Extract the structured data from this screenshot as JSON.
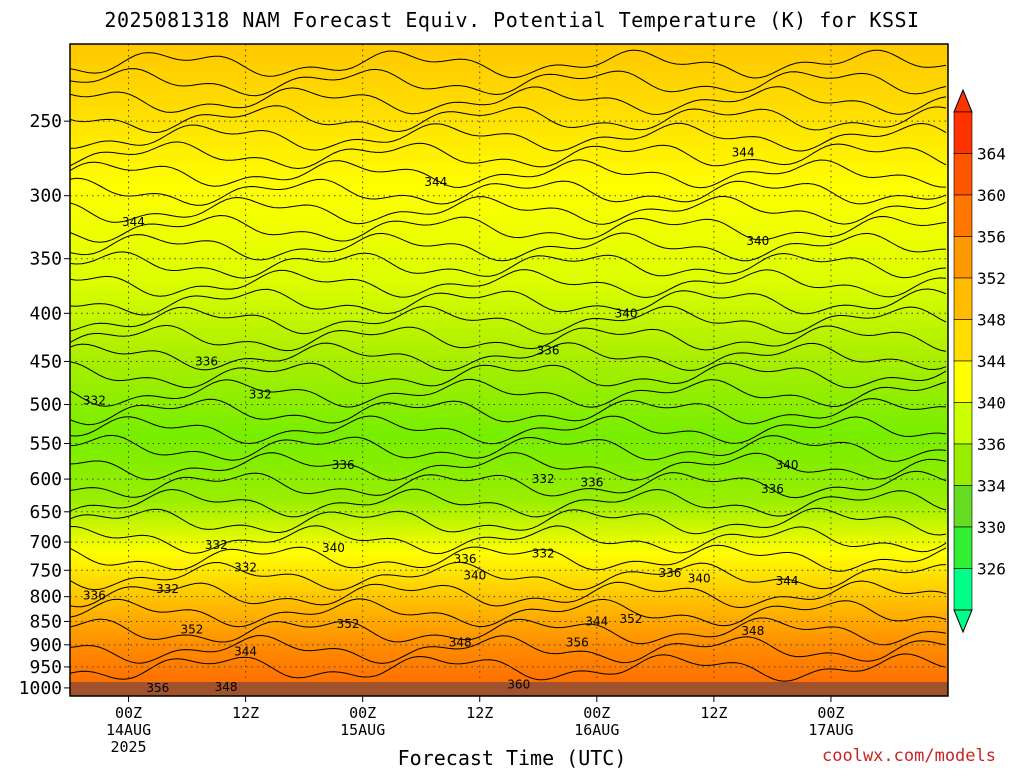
{
  "title": "2025081318 NAM Forecast Equiv. Potential Temperature (K) for KSSI",
  "credit": "coolwx.com/models",
  "chart_data": {
    "type": "heatmap",
    "title": "2025081318 NAM Forecast Equiv. Potential Temperature (K) for KSSI",
    "xlabel": "Forecast Time (UTC)",
    "ylabel": "",
    "y_axis": {
      "scale": "log-pressure",
      "ticks": [
        250,
        300,
        350,
        400,
        450,
        500,
        550,
        600,
        650,
        700,
        750,
        800,
        850,
        900,
        950,
        1000
      ],
      "range": [
        1000,
        200
      ],
      "grid": true
    },
    "x_axis": {
      "range_hours": [
        -6,
        84
      ],
      "ticks": [
        {
          "hour": 0,
          "lines": [
            "00Z",
            "14AUG",
            "2025"
          ]
        },
        {
          "hour": 12,
          "lines": [
            "12Z"
          ]
        },
        {
          "hour": 24,
          "lines": [
            "00Z",
            "15AUG"
          ]
        },
        {
          "hour": 36,
          "lines": [
            "12Z"
          ]
        },
        {
          "hour": 48,
          "lines": [
            "00Z",
            "16AUG"
          ]
        },
        {
          "hour": 60,
          "lines": [
            "12Z"
          ]
        },
        {
          "hour": 72,
          "lines": [
            "00Z",
            "17AUG"
          ]
        }
      ],
      "grid": true
    },
    "units": "K",
    "colorbar": {
      "labels": [
        326,
        330,
        334,
        336,
        340,
        344,
        348,
        352,
        356,
        360,
        364
      ],
      "colors": [
        "#00ff88",
        "#33ee33",
        "#66dd22",
        "#99ee00",
        "#ccff00",
        "#ffff00",
        "#ffdd00",
        "#ffbb00",
        "#ff9900",
        "#ff7700",
        "#ff5500",
        "#ff3300"
      ]
    },
    "contour_labels": [
      {
        "text": "344",
        "h": 0.5,
        "p": 320
      },
      {
        "text": "344",
        "h": 31.5,
        "p": 290
      },
      {
        "text": "344",
        "h": 63,
        "p": 270
      },
      {
        "text": "340",
        "h": 64.5,
        "p": 335
      },
      {
        "text": "340",
        "h": 51,
        "p": 400
      },
      {
        "text": "336",
        "h": 8,
        "p": 450
      },
      {
        "text": "336",
        "h": 43,
        "p": 438
      },
      {
        "text": "332",
        "h": -3.5,
        "p": 495
      },
      {
        "text": "332",
        "h": 13.5,
        "p": 488
      },
      {
        "text": "336",
        "h": 22,
        "p": 580
      },
      {
        "text": "332",
        "h": 42.5,
        "p": 600
      },
      {
        "text": "336",
        "h": 47.5,
        "p": 605
      },
      {
        "text": "340",
        "h": 67.5,
        "p": 580
      },
      {
        "text": "336",
        "h": 66,
        "p": 615
      },
      {
        "text": "332",
        "h": 9,
        "p": 705
      },
      {
        "text": "332",
        "h": 12,
        "p": 745
      },
      {
        "text": "340",
        "h": 21,
        "p": 710
      },
      {
        "text": "336",
        "h": 34.5,
        "p": 730
      },
      {
        "text": "340",
        "h": 35.5,
        "p": 760
      },
      {
        "text": "332",
        "h": 42.5,
        "p": 720
      },
      {
        "text": "336",
        "h": 55.5,
        "p": 755
      },
      {
        "text": "340",
        "h": 58.5,
        "p": 765
      },
      {
        "text": "332",
        "h": 4,
        "p": 785
      },
      {
        "text": "336",
        "h": -3.5,
        "p": 798
      },
      {
        "text": "344",
        "h": 67.5,
        "p": 770
      },
      {
        "text": "352",
        "h": 6.5,
        "p": 867
      },
      {
        "text": "352",
        "h": 22.5,
        "p": 855
      },
      {
        "text": "344",
        "h": 48,
        "p": 850
      },
      {
        "text": "352",
        "h": 51.5,
        "p": 845
      },
      {
        "text": "348",
        "h": 34,
        "p": 895
      },
      {
        "text": "356",
        "h": 46,
        "p": 895
      },
      {
        "text": "348",
        "h": 64,
        "p": 870
      },
      {
        "text": "344",
        "h": 12,
        "p": 915
      },
      {
        "text": "360",
        "h": 40,
        "p": 992
      },
      {
        "text": "356",
        "h": 3,
        "p": 1000
      },
      {
        "text": "348",
        "h": 10,
        "p": 998
      }
    ]
  }
}
